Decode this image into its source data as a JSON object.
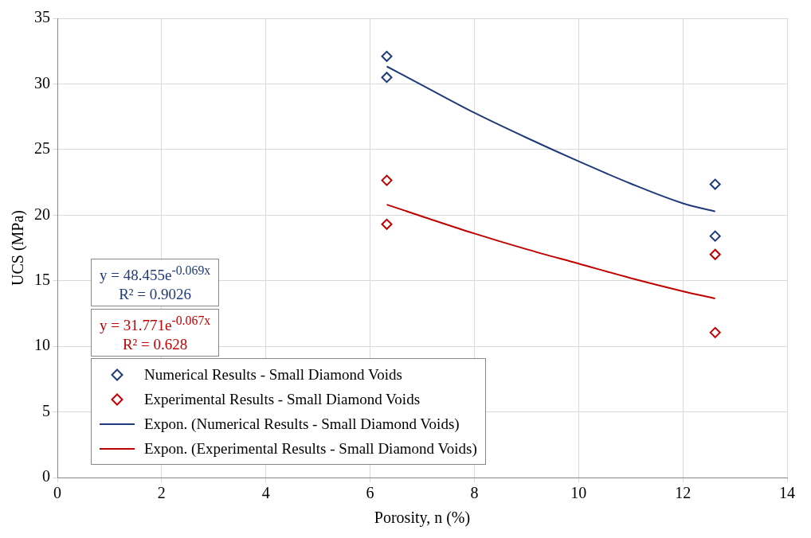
{
  "chart_data": {
    "type": "scatter",
    "xlabel": "Porosity, n (%)",
    "ylabel": "UCS (MPa)",
    "xlim": [
      0,
      14
    ],
    "xticks": [
      0,
      2,
      4,
      6,
      8,
      10,
      12,
      14
    ],
    "ylim": [
      0,
      35
    ],
    "yticks": [
      0,
      5,
      10,
      15,
      20,
      25,
      30,
      35
    ],
    "grid": true,
    "legend": "bottom left",
    "annotations": [
      "y = 48.455e$^{-0.069x}$\nR² = 0.9026",
      "y = 31.771e$^{-0.067x}$\nR² = 0.628"
    ],
    "series": [
      {
        "name": "Numerical Results - Small Diamond Voids",
        "marker": "diamond",
        "color": "#1f3a7a",
        "x": [
          6.32,
          6.32,
          12.62,
          12.62
        ],
        "values": [
          32.1,
          30.5,
          22.35,
          18.4
        ]
      },
      {
        "name": "Experimental Results - Small Diamond Voids",
        "marker": "diamond",
        "color": "#c00000",
        "x": [
          6.32,
          6.32,
          12.62,
          12.62
        ],
        "values": [
          22.65,
          19.3,
          17.0,
          11.05
        ]
      },
      {
        "name": "Expon. (Numerical Results - Small Diamond Voids)",
        "type": "line",
        "marker": "none",
        "color": "#1f3a7a",
        "x": [
          6.32,
          7,
          8,
          9,
          10,
          11,
          12,
          12.62
        ],
        "values": [
          31.33,
          29.9,
          27.8,
          25.9,
          24.1,
          22.4,
          20.9,
          20.28
        ]
      },
      {
        "name": "Expon. (Experimental Results - Small Diamond Voids)",
        "type": "line",
        "marker": "none",
        "color": "#c00000",
        "x": [
          6.32,
          7,
          8,
          9,
          10,
          11,
          12,
          12.62
        ],
        "values": [
          20.8,
          19.9,
          18.6,
          17.4,
          16.3,
          15.2,
          14.2,
          13.64
        ]
      }
    ]
  }
}
